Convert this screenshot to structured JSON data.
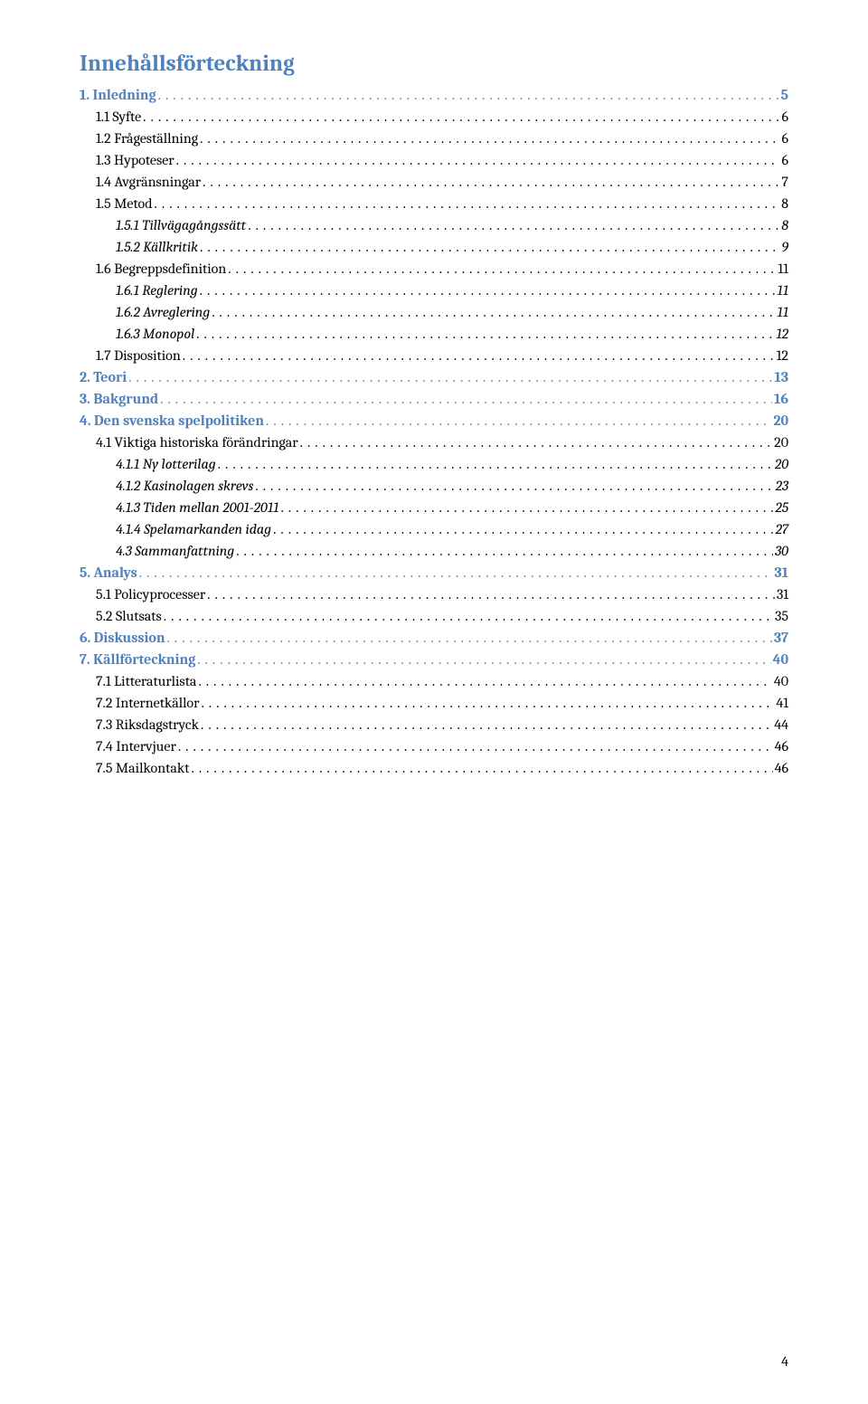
{
  "heading": "Innehållsförteckning",
  "page_number": "4",
  "colors": {
    "heading": "#4f81bd",
    "text": "#000000",
    "background": "#ffffff"
  },
  "toc": [
    {
      "level": 1,
      "label": "1. Inledning",
      "page": "5"
    },
    {
      "level": 2,
      "label": "1.1 Syfte",
      "page": "6"
    },
    {
      "level": 2,
      "label": "1.2 Frågeställning",
      "page": "6"
    },
    {
      "level": 2,
      "label": "1.3 Hypoteser",
      "page": "6"
    },
    {
      "level": 2,
      "label": "1.4 Avgränsningar",
      "page": "7"
    },
    {
      "level": 2,
      "label": "1.5 Metod",
      "page": "8"
    },
    {
      "level": 3,
      "label": "1.5.1 Tillvägagångssätt",
      "page": "8"
    },
    {
      "level": 3,
      "label": "1.5.2 Källkritik",
      "page": "9"
    },
    {
      "level": 2,
      "label": "1.6 Begreppsdefinition",
      "page": "11"
    },
    {
      "level": 3,
      "label": "1.6.1 Reglering",
      "page": "11"
    },
    {
      "level": 3,
      "label": "1.6.2 Avreglering",
      "page": "11"
    },
    {
      "level": 3,
      "label": "1.6.3 Monopol",
      "page": "12"
    },
    {
      "level": 2,
      "label": "1.7 Disposition",
      "page": "12"
    },
    {
      "level": 1,
      "label": "2. Teori",
      "page": "13"
    },
    {
      "level": 1,
      "label": "3. Bakgrund",
      "page": "16"
    },
    {
      "level": 1,
      "label": "4. Den svenska spelpolitiken",
      "page": "20"
    },
    {
      "level": 2,
      "label": "4.1 Viktiga historiska förändringar",
      "page": "20"
    },
    {
      "level": 3,
      "label": "4.1.1 Ny lotterilag",
      "page": "20"
    },
    {
      "level": 3,
      "label": "4.1.2 Kasinolagen skrevs",
      "page": "23"
    },
    {
      "level": 3,
      "label": "4.1.3 Tiden mellan 2001-2011",
      "page": "25"
    },
    {
      "level": 3,
      "label": "4.1.4 Spelamarkanden idag",
      "page": "27"
    },
    {
      "level": 3,
      "label": "4.3 Sammanfattning",
      "page": "30"
    },
    {
      "level": 1,
      "label": "5. Analys",
      "page": "31"
    },
    {
      "level": 2,
      "label": "5.1 Policyprocesser",
      "page": "31"
    },
    {
      "level": 2,
      "label": "5.2 Slutsats",
      "page": "35"
    },
    {
      "level": 1,
      "label": "6. Diskussion",
      "page": "37"
    },
    {
      "level": 1,
      "label": "7. Källförteckning",
      "page": "40"
    },
    {
      "level": 2,
      "label": "7.1 Litteraturlista",
      "page": "40"
    },
    {
      "level": 2,
      "label": "7.2 Internetkällor",
      "page": "41"
    },
    {
      "level": 2,
      "label": "7.3 Riksdagstryck",
      "page": "44"
    },
    {
      "level": 2,
      "label": "7.4 Intervjuer",
      "page": "46"
    },
    {
      "level": 2,
      "label": "7.5 Mailkontakt",
      "page": "46"
    }
  ]
}
